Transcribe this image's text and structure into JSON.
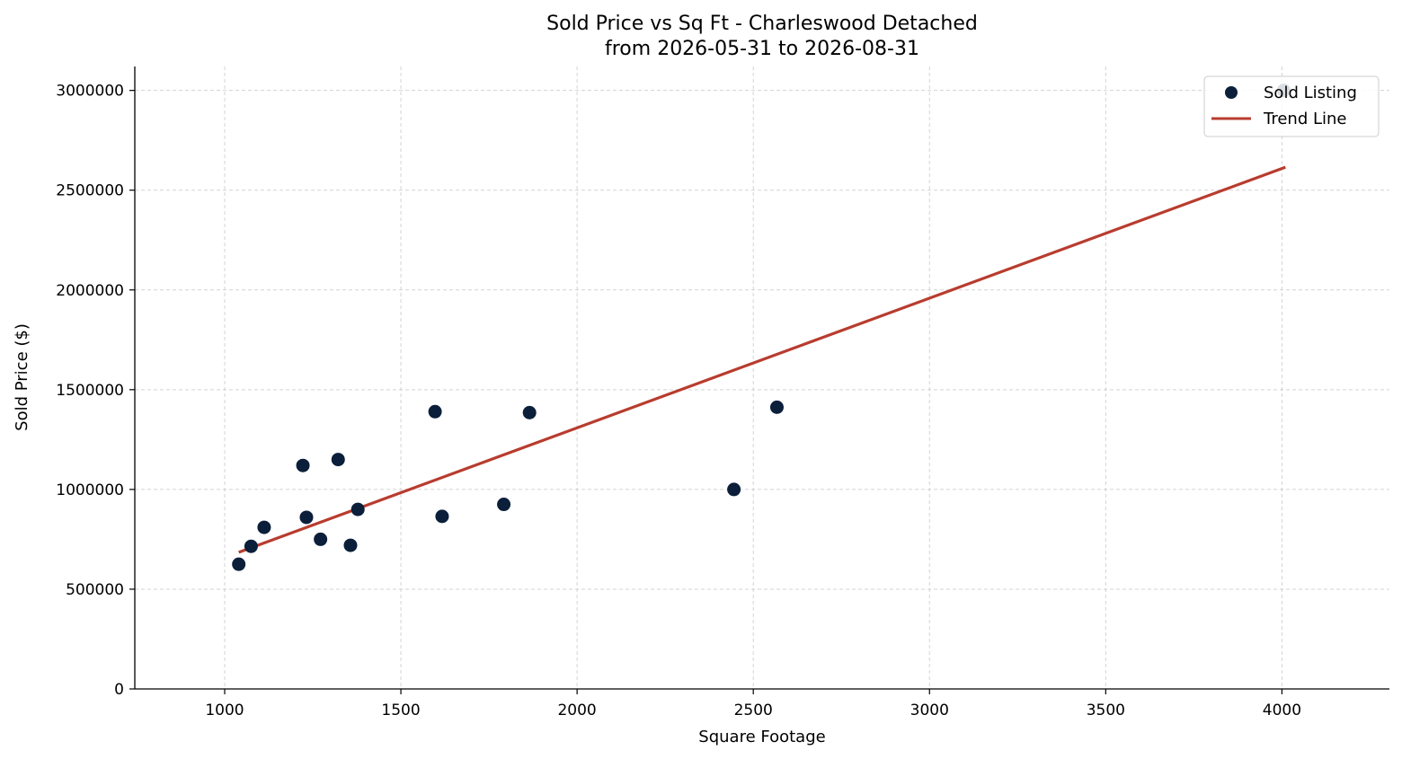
{
  "chart_data": {
    "type": "scatter",
    "title_line1": "Sold Price vs Sq Ft - Charleswood Detached",
    "title_line2": "from 2026-05-31 to 2026-08-31",
    "xlabel": "Square Footage",
    "ylabel": "Sold Price ($)",
    "xlim": [
      745,
      4305
    ],
    "ylim": [
      0,
      3120000
    ],
    "xticks": [
      1000,
      1500,
      2000,
      2500,
      3000,
      3500,
      4000
    ],
    "yticks": [
      0,
      500000,
      1000000,
      1500000,
      2000000,
      2500000,
      3000000
    ],
    "grid": true,
    "legend": {
      "placement": "top-right",
      "entries": [
        "Sold Listing",
        "Trend Line"
      ]
    },
    "colors": {
      "points": "#0b1f3a",
      "trend": "#b83c2e"
    },
    "series": [
      {
        "name": "Sold Listing",
        "kind": "scatter",
        "points": [
          {
            "x": 1040,
            "y": 625000
          },
          {
            "x": 1075,
            "y": 715000
          },
          {
            "x": 1112,
            "y": 810000
          },
          {
            "x": 1222,
            "y": 1120000
          },
          {
            "x": 1232,
            "y": 860000
          },
          {
            "x": 1272,
            "y": 750000
          },
          {
            "x": 1322,
            "y": 1150000
          },
          {
            "x": 1357,
            "y": 720000
          },
          {
            "x": 1378,
            "y": 900000
          },
          {
            "x": 1597,
            "y": 1390000
          },
          {
            "x": 1617,
            "y": 865000
          },
          {
            "x": 1792,
            "y": 925000
          },
          {
            "x": 1865,
            "y": 1385000
          },
          {
            "x": 2445,
            "y": 1000000
          },
          {
            "x": 2567,
            "y": 1412000
          },
          {
            "x": 4005,
            "y": 3000000
          }
        ]
      },
      {
        "name": "Trend Line",
        "kind": "line",
        "points": [
          {
            "x": 1040,
            "y": 685000
          },
          {
            "x": 4010,
            "y": 2615000
          }
        ]
      }
    ]
  }
}
